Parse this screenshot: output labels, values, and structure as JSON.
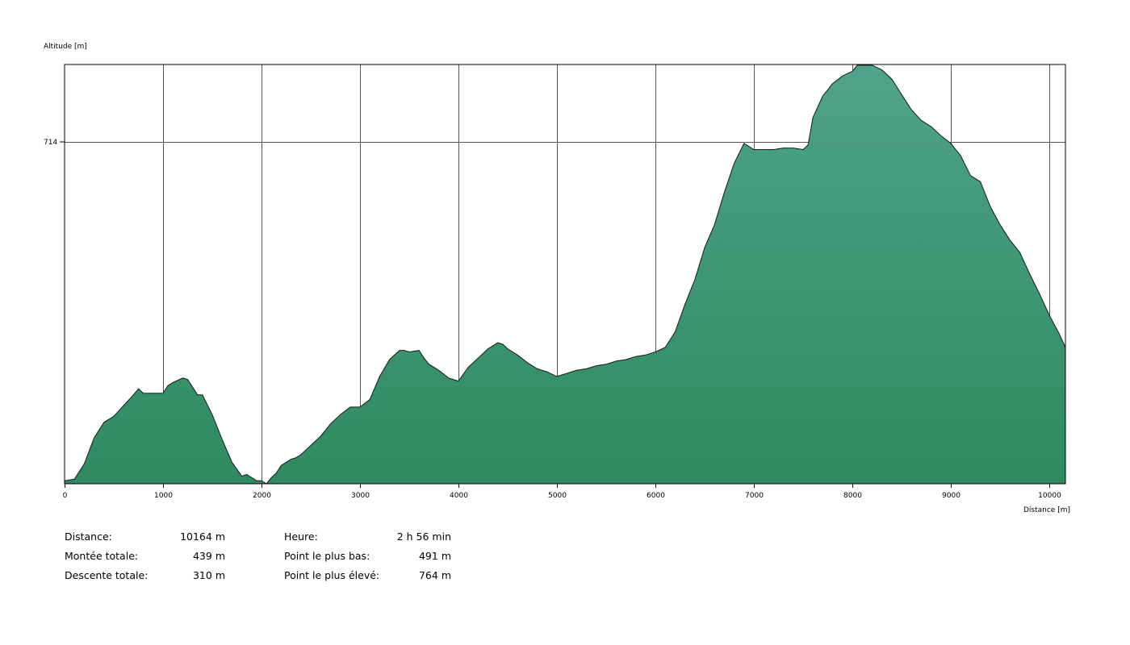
{
  "chart_data": {
    "type": "area",
    "ylabel": "Altitude [m]",
    "xlabel": "Distance [m]",
    "y_tick_labels": [
      "714"
    ],
    "x_tick_labels": [
      "0",
      "1000",
      "2000",
      "3000",
      "4000",
      "5000",
      "6000",
      "7000",
      "8000",
      "9000",
      "10000"
    ],
    "x_range": [
      0,
      10164
    ],
    "y_range": [
      491,
      764
    ],
    "grid": true,
    "fill_color": "#3a8f6a",
    "line_color": "#1a1a1a",
    "series": [
      {
        "x": [
          0,
          100,
          200,
          300,
          400,
          500,
          600,
          700,
          750,
          800,
          900,
          1000,
          1050,
          1100,
          1200,
          1250,
          1300,
          1350,
          1400,
          1500,
          1600,
          1700,
          1800,
          1850,
          1900,
          1950,
          2000,
          2050,
          2100,
          2150,
          2200,
          2250,
          2300,
          2350,
          2400,
          2500,
          2600,
          2700,
          2800,
          2900,
          3000,
          3100,
          3200,
          3300,
          3400,
          3450,
          3500,
          3600,
          3650,
          3700,
          3800,
          3900,
          4000,
          4100,
          4200,
          4300,
          4400,
          4450,
          4500,
          4600,
          4700,
          4800,
          4900,
          5000,
          5100,
          5200,
          5300,
          5400,
          5500,
          5600,
          5700,
          5800,
          5900,
          6000,
          6100,
          6200,
          6300,
          6400,
          6500,
          6600,
          6700,
          6800,
          6900,
          7000,
          7050,
          7100,
          7200,
          7300,
          7400,
          7500,
          7550,
          7600,
          7700,
          7800,
          7900,
          8000,
          8050,
          8100,
          8200,
          8300,
          8400,
          8500,
          8600,
          8700,
          8800,
          8900,
          9000,
          9100,
          9200,
          9300,
          9400,
          9500,
          9600,
          9700,
          9800,
          9900,
          10000,
          10100,
          10164
        ],
        "y": [
          493,
          494,
          504,
          521,
          531,
          535,
          542,
          549,
          553,
          550,
          550,
          550,
          555,
          557,
          560,
          559,
          554,
          549,
          549,
          536,
          520,
          505,
          496,
          497,
          495,
          493,
          493,
          491,
          495,
          498,
          503,
          505,
          507,
          508,
          510,
          516,
          522,
          530,
          536,
          541,
          541,
          546,
          561,
          572,
          578,
          578,
          577,
          578,
          573,
          569,
          565,
          560,
          558,
          567,
          573,
          579,
          583,
          582,
          579,
          575,
          570,
          566,
          564,
          561,
          563,
          565,
          566,
          568,
          569,
          571,
          572,
          574,
          575,
          577,
          580,
          590,
          608,
          624,
          645,
          660,
          681,
          700,
          713,
          709,
          709,
          709,
          709,
          710,
          710,
          709,
          712,
          730,
          744,
          752,
          757,
          760,
          764,
          764,
          764,
          761,
          755,
          745,
          735,
          728,
          724,
          718,
          713,
          705,
          692,
          688,
          672,
          660,
          650,
          642,
          628,
          615,
          601,
          589,
          580
        ]
      }
    ]
  },
  "stats": {
    "col1": [
      {
        "label": "Distance:",
        "value": "10164 m"
      },
      {
        "label": "Montée totale:",
        "value": "439 m"
      },
      {
        "label": "Descente totale:",
        "value": "310 m"
      }
    ],
    "col2": [
      {
        "label": "Heure:",
        "value": "2 h 56 min"
      },
      {
        "label": "Point le plus bas:",
        "value": "491 m"
      },
      {
        "label": "Point le plus élevé:",
        "value": "764 m"
      }
    ]
  }
}
